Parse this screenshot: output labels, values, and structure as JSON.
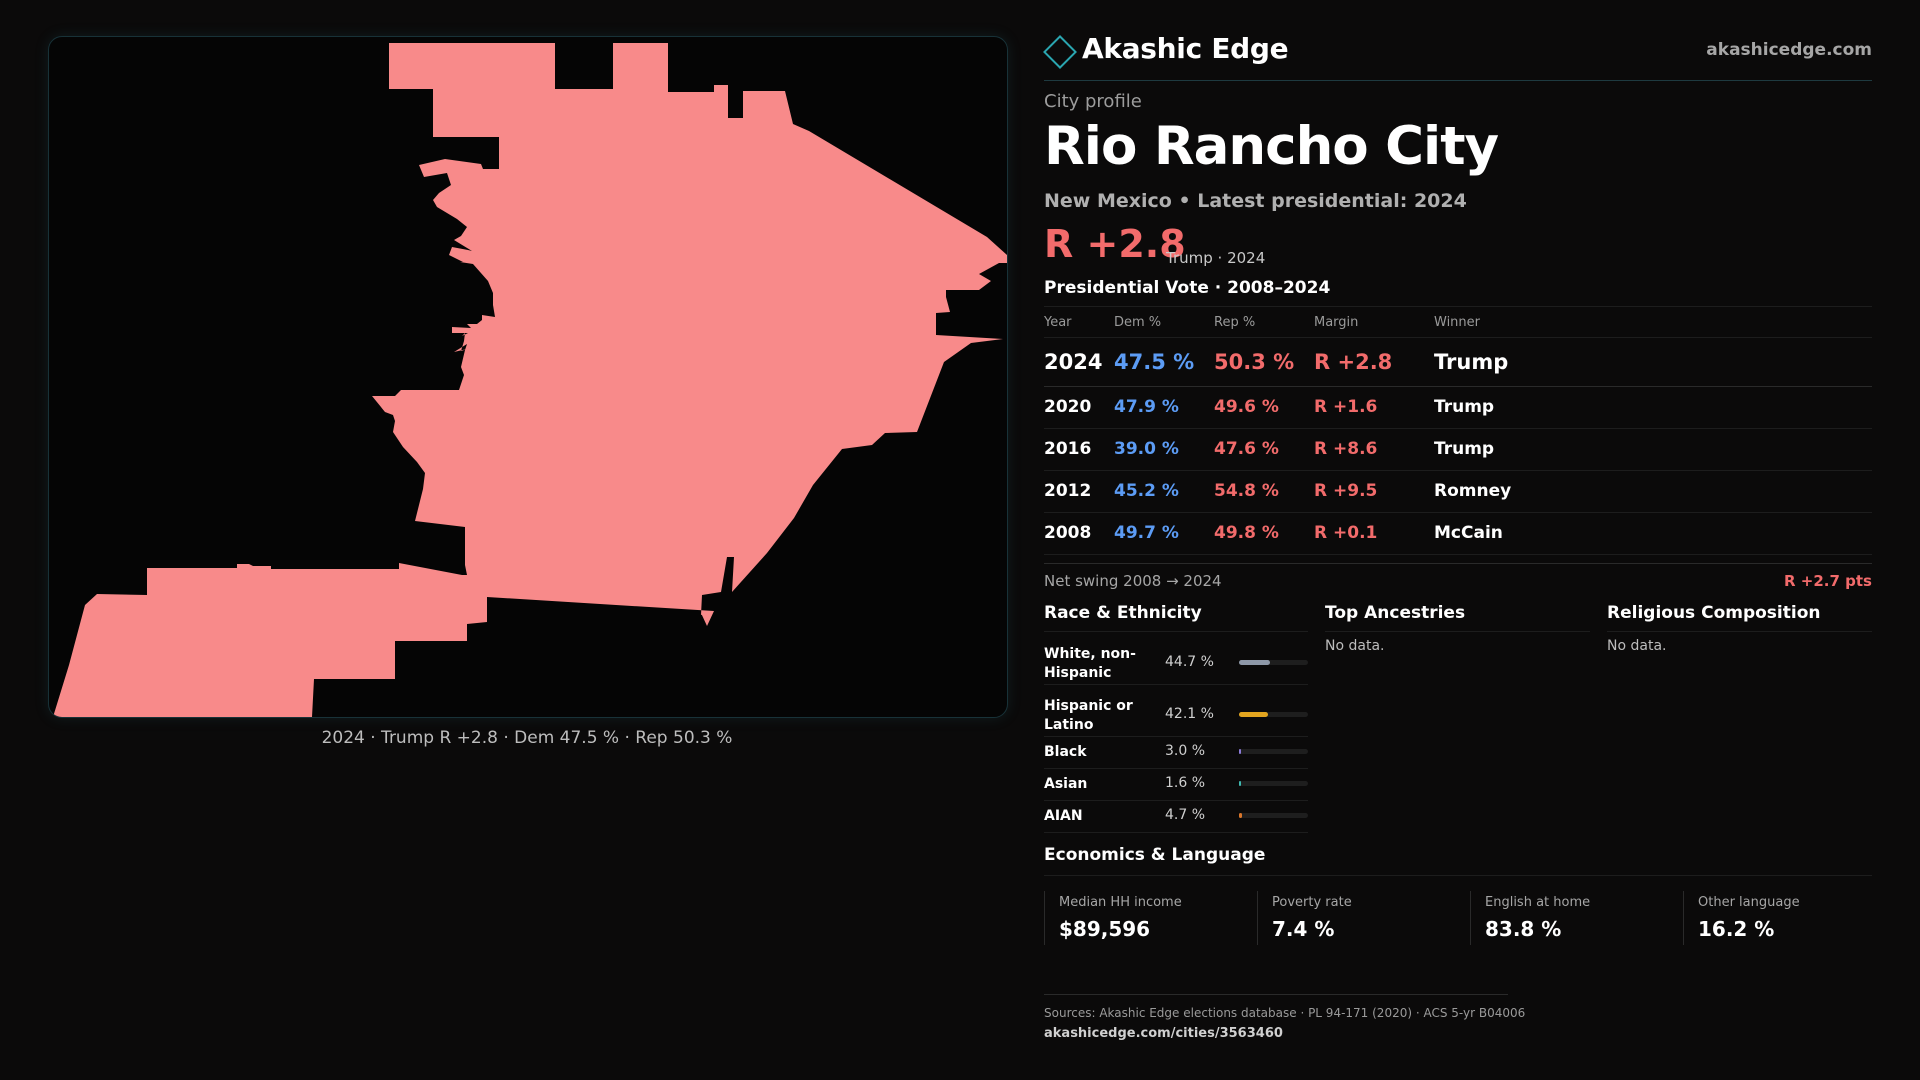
{
  "brand": {
    "name": "Akashic Edge",
    "site": "akashicedge.com",
    "mark_icon": "diamond-outline-icon"
  },
  "map": {
    "fill_color": "#f88a8a",
    "caption": "2024 · Trump R +2.8 · Dem 47.5 % · Rep 50.3 %"
  },
  "profile": {
    "kicker": "City profile",
    "title": "Rio Rancho City",
    "subtitle": "New Mexico • Latest presidential: 2024",
    "margin": "R +2.8",
    "margin_note": "Trump · 2024"
  },
  "vote": {
    "heading": "Presidential Vote · 2008–2024",
    "columns": [
      "Year",
      "Dem %",
      "Rep %",
      "Margin",
      "Winner"
    ],
    "rows": [
      {
        "year": "2024",
        "dem": "47.5 %",
        "rep": "50.3 %",
        "margin": "R +2.8",
        "winner": "Trump"
      },
      {
        "year": "2020",
        "dem": "47.9 %",
        "rep": "49.6 %",
        "margin": "R +1.6",
        "winner": "Trump"
      },
      {
        "year": "2016",
        "dem": "39.0 %",
        "rep": "47.6 %",
        "margin": "R +8.6",
        "winner": "Trump"
      },
      {
        "year": "2012",
        "dem": "45.2 %",
        "rep": "54.8 %",
        "margin": "R +9.5",
        "winner": "Romney"
      },
      {
        "year": "2008",
        "dem": "49.7 %",
        "rep": "49.8 %",
        "margin": "R +0.1",
        "winner": "McCain"
      }
    ],
    "swing_label": "Net swing 2008 → 2024",
    "swing_value": "R +2.7 pts",
    "dem_color": "#5c9cf5",
    "rep_color": "#f26b6b"
  },
  "race": {
    "heading": "Race & Ethnicity",
    "rows": [
      {
        "label": "White, non-Hispanic",
        "value": "44.7 %",
        "share": 0.447,
        "color": "#8e98a8"
      },
      {
        "label": "Hispanic or Latino",
        "value": "42.1 %",
        "share": 0.421,
        "color": "#e3a51f"
      },
      {
        "label": "Black",
        "value": "3.0 %",
        "share": 0.03,
        "color": "#8c7bd8"
      },
      {
        "label": "Asian",
        "value": "1.6 %",
        "share": 0.016,
        "color": "#3fb8b0"
      },
      {
        "label": "AIAN",
        "value": "4.7 %",
        "share": 0.047,
        "color": "#d9762b"
      }
    ]
  },
  "ancestries": {
    "heading": "Top Ancestries",
    "empty": "No data."
  },
  "religion": {
    "heading": "Religious Composition",
    "empty": "No data."
  },
  "economics": {
    "heading": "Economics & Language",
    "stats": [
      {
        "label": "Median HH income",
        "value": "$89,596"
      },
      {
        "label": "Poverty rate",
        "value": "7.4 %"
      },
      {
        "label": "English at home",
        "value": "83.8 %"
      },
      {
        "label": "Other language",
        "value": "16.2 %"
      }
    ]
  },
  "footer": {
    "sources": "Sources: Akashic Edge elections database · PL 94-171 (2020) · ACS 5-yr B04006",
    "url": "akashicedge.com/cities/3563460"
  }
}
